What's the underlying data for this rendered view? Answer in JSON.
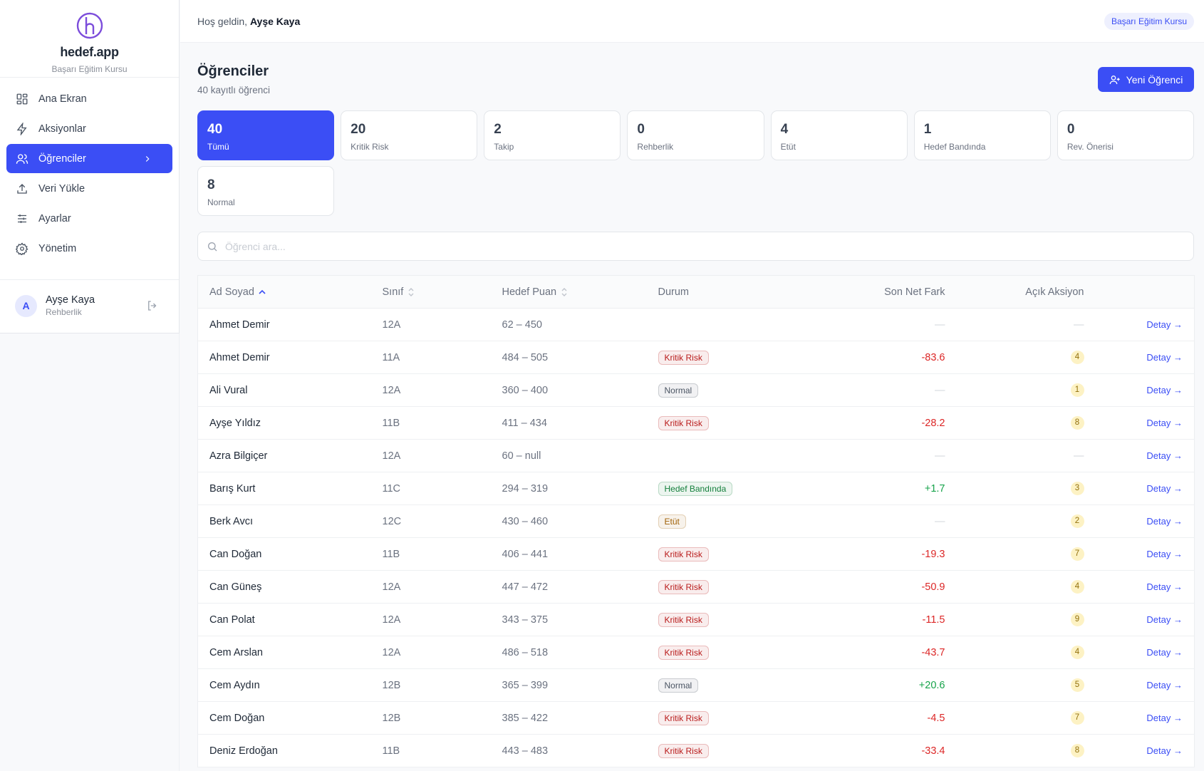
{
  "sidebar": {
    "brand": "hedef.app",
    "subtitle": "Başarı Eğitim Kursu",
    "nav": [
      "Ana Ekran",
      "Aksiyonlar",
      "Öğrenciler",
      "Veri Yükle",
      "Ayarlar",
      "Yönetim"
    ],
    "user": {
      "initial": "A",
      "name": "Ayşe Kaya",
      "role": "Rehberlik"
    }
  },
  "header": {
    "greeting": "Hoş geldin,",
    "user": "Ayşe Kaya",
    "badge": "Başarı Eğitim Kursu"
  },
  "page": {
    "title": "Öğrenciler",
    "subtitle": "40 kayıtlı öğrenci",
    "button": "Yeni Öğrenci",
    "search_placeholder": "Öğrenci ara..."
  },
  "stats": [
    {
      "value": 40,
      "label": "Tümü"
    },
    {
      "value": 20,
      "label": "Kritik Risk"
    },
    {
      "value": 2,
      "label": "Takip"
    },
    {
      "value": 0,
      "label": "Rehberlik"
    },
    {
      "value": 4,
      "label": "Etüt"
    },
    {
      "value": 1,
      "label": "Hedef Bandında"
    },
    {
      "value": 0,
      "label": "Rev. Önerisi"
    },
    {
      "value": 8,
      "label": "Normal"
    }
  ],
  "table": {
    "columns": [
      "Ad Soyad",
      "Sınıf",
      "Hedef Puan",
      "Durum",
      "Son Net Fark",
      "Açık Aksiyon"
    ],
    "detail_label": "Detay →",
    "rows": [
      {
        "name": "Ahmet Demir",
        "class": "12A",
        "target": "62 – 450",
        "status": null,
        "diff": "—",
        "actions": "—"
      },
      {
        "name": "Ahmet Demir",
        "class": "11A",
        "target": "484 – 505",
        "status": {
          "label": "Kritik Risk",
          "color": "#b91c1c"
        },
        "diff": "-83.6",
        "actions": 4
      },
      {
        "name": "Ali Vural",
        "class": "12A",
        "target": "360 – 400",
        "status": {
          "label": "Normal",
          "color": "#4b5563"
        },
        "diff": "—",
        "actions": 1
      },
      {
        "name": "Ayşe Yıldız",
        "class": "11B",
        "target": "411 – 434",
        "status": {
          "label": "Kritik Risk",
          "color": "#b91c1c"
        },
        "diff": "-28.2",
        "actions": 8
      },
      {
        "name": "Azra Bilgiçer",
        "class": "12A",
        "target": "60 – null",
        "status": null,
        "diff": "—",
        "actions": "—"
      },
      {
        "name": "Barış Kurt",
        "class": "11C",
        "target": "294 – 319",
        "status": {
          "label": "Hedef Bandında",
          "color": "#15803d"
        },
        "diff": "+1.7",
        "actions": 3
      },
      {
        "name": "Berk Avcı",
        "class": "12C",
        "target": "430 – 460",
        "status": {
          "label": "Etüt",
          "color": "#a16207"
        },
        "diff": "—",
        "actions": 2
      },
      {
        "name": "Can Doğan",
        "class": "11B",
        "target": "406 – 441",
        "status": {
          "label": "Kritik Risk",
          "color": "#b91c1c"
        },
        "diff": "-19.3",
        "actions": 7
      },
      {
        "name": "Can Güneş",
        "class": "12A",
        "target": "447 – 472",
        "status": {
          "label": "Kritik Risk",
          "color": "#b91c1c"
        },
        "diff": "-50.9",
        "actions": 4
      },
      {
        "name": "Can Polat",
        "class": "12A",
        "target": "343 – 375",
        "status": {
          "label": "Kritik Risk",
          "color": "#b91c1c"
        },
        "diff": "-11.5",
        "actions": 9
      },
      {
        "name": "Cem Arslan",
        "class": "12A",
        "target": "486 – 518",
        "status": {
          "label": "Kritik Risk",
          "color": "#b91c1c"
        },
        "diff": "-43.7",
        "actions": 4
      },
      {
        "name": "Cem Aydın",
        "class": "12B",
        "target": "365 – 399",
        "status": {
          "label": "Normal",
          "color": "#4b5563"
        },
        "diff": "+20.6",
        "actions": 5
      },
      {
        "name": "Cem Doğan",
        "class": "12B",
        "target": "385 – 422",
        "status": {
          "label": "Kritik Risk",
          "color": "#b91c1c"
        },
        "diff": "-4.5",
        "actions": 7
      },
      {
        "name": "Deniz Erdoğan",
        "class": "11B",
        "target": "443 – 483",
        "status": {
          "label": "Kritik Risk",
          "color": "#b91c1c"
        },
        "diff": "-33.4",
        "actions": 8
      }
    ]
  }
}
